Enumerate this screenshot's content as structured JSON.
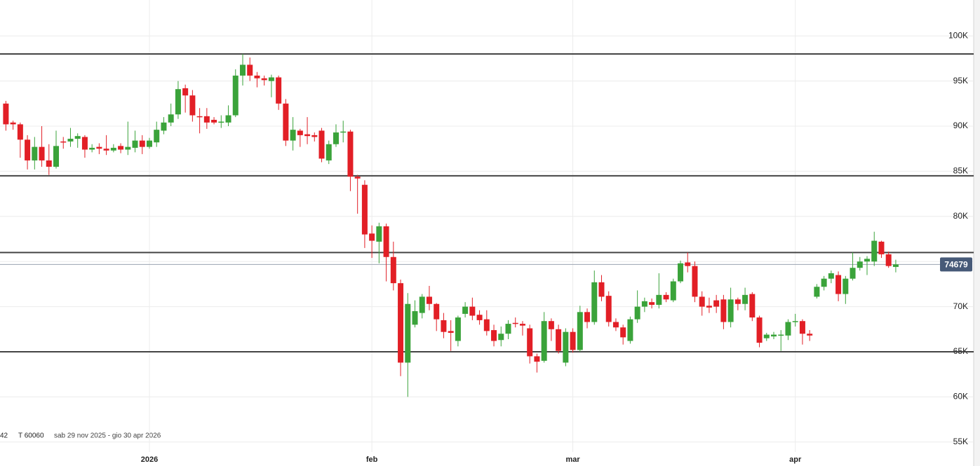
{
  "chart_data": {
    "type": "candlestick",
    "categories": [
      null,
      null,
      null,
      null,
      null,
      null,
      null,
      null,
      null,
      null,
      null,
      null,
      null,
      null,
      null,
      null,
      null,
      null,
      null,
      null,
      "2026",
      null,
      null,
      null,
      null,
      null,
      null,
      null,
      null,
      null,
      null,
      null,
      null,
      null,
      null,
      null,
      null,
      null,
      null,
      null,
      null,
      null,
      null,
      null,
      null,
      null,
      null,
      null,
      null,
      null,
      null,
      "feb",
      null,
      null,
      null,
      null,
      null,
      null,
      null,
      null,
      null,
      null,
      null,
      null,
      null,
      null,
      null,
      null,
      null,
      null,
      null,
      null,
      null,
      null,
      null,
      null,
      null,
      null,
      null,
      "mar",
      null,
      null,
      null,
      null,
      null,
      null,
      null,
      null,
      null,
      null,
      null,
      null,
      null,
      null,
      null,
      null,
      null,
      null,
      null,
      null,
      null,
      null,
      null,
      null,
      null,
      null,
      null,
      null,
      null,
      null,
      "apr",
      null,
      null,
      null,
      null,
      null,
      null,
      null,
      null,
      null,
      null,
      null,
      null,
      null,
      null
    ],
    "open": [
      92500,
      90400,
      90200,
      88500,
      86200,
      87700,
      86200,
      85500,
      88300,
      88300,
      88600,
      88800,
      87400,
      87700,
      87500,
      87300,
      87800,
      87400,
      87600,
      88400,
      87700,
      88200,
      89500,
      90400,
      91300,
      94200,
      93400,
      91100,
      91100,
      90700,
      90400,
      90400,
      91200,
      95600,
      96800,
      95600,
      95300,
      95000,
      95400,
      92500,
      88400,
      89500,
      89100,
      89000,
      89500,
      86200,
      88000,
      89300,
      89400,
      84400,
      83500,
      78100,
      77200,
      78900,
      75500,
      72600,
      63800,
      68000,
      69300,
      71100,
      70300,
      68500,
      67300,
      66200,
      69200,
      70000,
      69100,
      68600,
      67400,
      66300,
      67000,
      68200,
      68100,
      67600,
      64500,
      64000,
      68400,
      67500,
      63800,
      67200,
      65200,
      69400,
      68300,
      72700,
      71200,
      68300,
      67700,
      66200,
      68600,
      70000,
      70500,
      70200,
      71300,
      70700,
      72800,
      74900,
      74500,
      71100,
      70100,
      70700,
      70800,
      68300,
      70800,
      70300,
      71400,
      68800,
      66500,
      66700,
      66800,
      66800,
      68300,
      68400,
      67000,
      71100,
      72200,
      73100,
      73500,
      71400,
      73100,
      74300,
      75000,
      75000,
      77200,
      75800,
      74400
    ],
    "high": [
      92800,
      90600,
      90400,
      89000,
      88800,
      90000,
      88000,
      89500,
      88800,
      89800,
      89200,
      89000,
      88000,
      88100,
      89000,
      88000,
      88100,
      90500,
      89500,
      89000,
      88700,
      90500,
      91000,
      92500,
      95000,
      94600,
      94000,
      92000,
      92000,
      91000,
      91200,
      92300,
      96300,
      98000,
      97600,
      96000,
      95600,
      95700,
      95600,
      93000,
      91000,
      89700,
      91000,
      89300,
      89800,
      88400,
      90200,
      90600,
      89600,
      84600,
      84000,
      79000,
      79300,
      79200,
      77200,
      73000,
      71500,
      70700,
      71400,
      72300,
      70400,
      69300,
      68500,
      69000,
      70500,
      71000,
      69600,
      69600,
      68000,
      67800,
      68500,
      68800,
      68400,
      68000,
      64800,
      69400,
      68700,
      68000,
      67600,
      67600,
      70100,
      69800,
      74000,
      73500,
      71700,
      68700,
      68000,
      68900,
      71800,
      71000,
      70900,
      73700,
      71600,
      73100,
      75100,
      76000,
      75000,
      71700,
      71000,
      71300,
      71300,
      72100,
      71000,
      72100,
      71600,
      69000,
      67100,
      67200,
      67400,
      68600,
      69200,
      68600,
      67400,
      72500,
      73400,
      74000,
      73900,
      73400,
      76000,
      75500,
      75600,
      78300,
      77300,
      76100,
      75200
    ],
    "low": [
      89500,
      89600,
      86500,
      85200,
      85200,
      85500,
      84600,
      85300,
      87500,
      87700,
      87600,
      86500,
      87100,
      86900,
      86800,
      87100,
      87000,
      86800,
      87100,
      86900,
      87500,
      87700,
      89100,
      90000,
      90800,
      91500,
      90500,
      89200,
      89700,
      90200,
      89800,
      90000,
      91000,
      94500,
      95000,
      94300,
      94500,
      93200,
      91800,
      87800,
      87300,
      87700,
      88000,
      88300,
      86000,
      85800,
      87700,
      88200,
      82800,
      80300,
      76500,
      75400,
      74800,
      72800,
      71800,
      62300,
      60000,
      67700,
      68700,
      69600,
      67300,
      66500,
      65100,
      65600,
      68800,
      68500,
      68000,
      66800,
      65600,
      65600,
      66400,
      67700,
      66800,
      63700,
      62700,
      63800,
      66200,
      64800,
      63400,
      64900,
      65000,
      67600,
      68000,
      70600,
      67800,
      67300,
      65800,
      65900,
      68200,
      69400,
      69800,
      69800,
      70500,
      70500,
      72600,
      73800,
      70500,
      69000,
      69300,
      69300,
      67500,
      67700,
      69600,
      69600,
      68400,
      65500,
      66200,
      66400,
      65100,
      66300,
      67800,
      65800,
      66200,
      70900,
      71800,
      72600,
      70600,
      70300,
      72900,
      74000,
      73500,
      74500,
      75400,
      74300,
      73800
    ],
    "close": [
      90200,
      90200,
      88500,
      86200,
      87700,
      86200,
      85500,
      87800,
      88200,
      88600,
      88900,
      87400,
      87600,
      87500,
      87300,
      87600,
      87400,
      87700,
      88400,
      87700,
      88400,
      89600,
      90400,
      91300,
      94100,
      93400,
      91200,
      91000,
      90400,
      90400,
      90500,
      91200,
      95600,
      96800,
      95600,
      95300,
      95100,
      95400,
      92500,
      88400,
      89600,
      89000,
      88900,
      88800,
      86400,
      88000,
      89300,
      89400,
      84400,
      84200,
      78000,
      77300,
      78900,
      75500,
      72600,
      63800,
      70300,
      69500,
      71100,
      70300,
      68600,
      67200,
      67100,
      68800,
      70000,
      69000,
      68500,
      67300,
      66200,
      67000,
      68100,
      68100,
      67900,
      64500,
      63900,
      68400,
      67500,
      65100,
      67200,
      65200,
      69400,
      68300,
      72700,
      71100,
      68300,
      67700,
      66600,
      68600,
      70000,
      70600,
      70200,
      71300,
      70800,
      72800,
      74800,
      74500,
      71100,
      70000,
      69900,
      70000,
      68300,
      70800,
      70300,
      71300,
      68800,
      66000,
      66900,
      66900,
      66900,
      68300,
      68400,
      67000,
      66800,
      72200,
      73100,
      73700,
      71400,
      73100,
      74300,
      75000,
      75300,
      77300,
      75800,
      74500,
      74679
    ],
    "up_color": "#3aa33a",
    "down_color": "#e21f26",
    "last_price": 74679,
    "levels": [
      98000,
      84500,
      76000,
      65000
    ],
    "ylim": [
      52500,
      102500
    ],
    "yticks": [
      {
        "value": 55000,
        "label": "55K"
      },
      {
        "value": 60000,
        "label": "60K"
      },
      {
        "value": 65000,
        "label": "65K"
      },
      {
        "value": 70000,
        "label": "70K"
      },
      {
        "value": 75000,
        "label": "75K"
      },
      {
        "value": 80000,
        "label": "80K"
      },
      {
        "value": 85000,
        "label": "85K"
      },
      {
        "value": 90000,
        "label": "90K"
      },
      {
        "value": 95000,
        "label": "95K"
      },
      {
        "value": 100000,
        "label": "100K"
      }
    ],
    "grid": true,
    "info_count": "42",
    "info_trades": "T 60060",
    "info_range": "sab 29 nov 2025 - gio 30 apr 2026"
  }
}
